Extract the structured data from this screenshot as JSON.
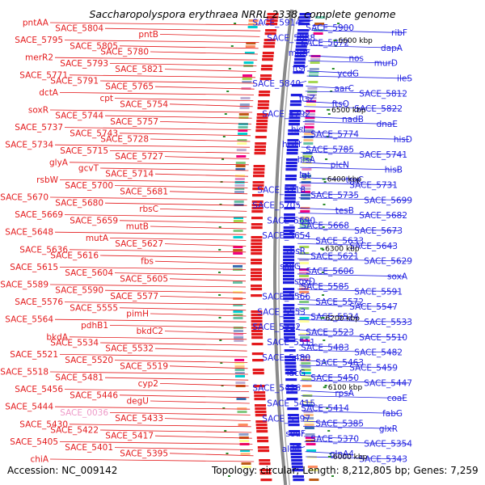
{
  "title": "Saccharopolyspora erythraea NRRL 2338, complete genome",
  "footer": {
    "accession": "Accession: NC_009142",
    "topology": "Topology: circular; Length: 8,212,805 bp; Genes: 7,259"
  },
  "colors": {
    "left_strand": "#e41a1c",
    "right_strand": "#1f1fe0",
    "backbone": "#8a8a8a",
    "highlight_label": "#ee9ac8"
  },
  "scale_labels": [
    "6600 kbp",
    "6500 kbp",
    "6400 kbp",
    "6300 kbp",
    "6200 kbp",
    "6100 kbp",
    "6000 kbp"
  ],
  "left_genes": [
    {
      "label": "pntAA"
    },
    {
      "label": "SACE_5804"
    },
    {
      "label": "pntB"
    },
    {
      "label": "SACE_5795"
    },
    {
      "label": "SACE_5805"
    },
    {
      "label": "SACE_5780"
    },
    {
      "label": "merR2"
    },
    {
      "label": "SACE_5793"
    },
    {
      "label": "SACE_5821"
    },
    {
      "label": "SACE_5771"
    },
    {
      "label": "SACE_5791"
    },
    {
      "label": "SACE_5765"
    },
    {
      "label": "dctA"
    },
    {
      "label": "cpt"
    },
    {
      "label": "SACE_5754"
    },
    {
      "label": "soxR"
    },
    {
      "label": "SACE_5744"
    },
    {
      "label": "SACE_5757"
    },
    {
      "label": "SACE_5737"
    },
    {
      "label": "SACE_5743"
    },
    {
      "label": "SACE_5728"
    },
    {
      "label": "SACE_5734"
    },
    {
      "label": "SACE_5715"
    },
    {
      "label": "SACE_5727"
    },
    {
      "label": "glyA"
    },
    {
      "label": "gcvT"
    },
    {
      "label": "SACE_5714"
    },
    {
      "label": "rsbW"
    },
    {
      "label": "SACE_5700"
    },
    {
      "label": "SACE_5681"
    },
    {
      "label": "SACE_5670"
    },
    {
      "label": "SACE_5680"
    },
    {
      "label": "rbsC"
    },
    {
      "label": "SACE_5669"
    },
    {
      "label": "SACE_5659"
    },
    {
      "label": "mutB"
    },
    {
      "label": "SACE_5648"
    },
    {
      "label": "mutA"
    },
    {
      "label": "SACE_5627"
    },
    {
      "label": "SACE_5636"
    },
    {
      "label": "SACE_5616"
    },
    {
      "label": "fbs"
    },
    {
      "label": "SACE_5615"
    },
    {
      "label": "SACE_5604"
    },
    {
      "label": "SACE_5605"
    },
    {
      "label": "SACE_5589"
    },
    {
      "label": "SACE_5590"
    },
    {
      "label": "SACE_5577"
    },
    {
      "label": "SACE_5576"
    },
    {
      "label": "SACE_5555"
    },
    {
      "label": "pimH"
    },
    {
      "label": "SACE_5564"
    },
    {
      "label": "pdhB1"
    },
    {
      "label": "bkdC2"
    },
    {
      "label": "bkdA"
    },
    {
      "label": "SACE_5534"
    },
    {
      "label": "SACE_5532"
    },
    {
      "label": "SACE_5521"
    },
    {
      "label": "SACE_5520"
    },
    {
      "label": "SACE_5519"
    },
    {
      "label": "SACE_5518"
    },
    {
      "label": "SACE_5481"
    },
    {
      "label": "cyp2"
    },
    {
      "label": "SACE_5456"
    },
    {
      "label": "SACE_5446"
    },
    {
      "label": "degU"
    },
    {
      "label": "SACE_5444"
    },
    {
      "label": "SACE_0036"
    },
    {
      "label": "SACE_5433"
    },
    {
      "label": "SACE_5430"
    },
    {
      "label": "SACE_5422"
    },
    {
      "label": "SACE_5417"
    },
    {
      "label": "SACE_5405"
    },
    {
      "label": "SACE_5401"
    },
    {
      "label": "SACE_5395"
    },
    {
      "label": "chiA"
    }
  ],
  "right_genes": [
    {
      "label": "SACE_5914"
    },
    {
      "label": "SACE_5900"
    },
    {
      "label": "ribF"
    },
    {
      "label": "SACE_5888"
    },
    {
      "label": "SACE_5872"
    },
    {
      "label": "dapA"
    },
    {
      "label": "murF"
    },
    {
      "label": "nos"
    },
    {
      "label": "murD"
    },
    {
      "label": "ftsI"
    },
    {
      "label": "ycdG"
    },
    {
      "label": "ileS"
    },
    {
      "label": "SACE_5840"
    },
    {
      "label": "aarC"
    },
    {
      "label": "SACE_5812"
    },
    {
      "label": "ftsZ"
    },
    {
      "label": "ftsQ"
    },
    {
      "label": "SACE_5822"
    },
    {
      "label": "SACE_5792"
    },
    {
      "label": "nadB"
    },
    {
      "label": "dnaE"
    },
    {
      "label": "hisI"
    },
    {
      "label": "SACE_5774"
    },
    {
      "label": "hisD"
    },
    {
      "label": "hisH"
    },
    {
      "label": "SACE_5785"
    },
    {
      "label": "SACE_5741"
    },
    {
      "label": "hisA"
    },
    {
      "label": "plcN"
    },
    {
      "label": "hisB"
    },
    {
      "label": "lgt"
    },
    {
      "label": "trpC"
    },
    {
      "label": "SACE_5731"
    },
    {
      "label": "SACE_5718"
    },
    {
      "label": "SACE_5735"
    },
    {
      "label": "SACE_5699"
    },
    {
      "label": "SACE_5705"
    },
    {
      "label": "tesB"
    },
    {
      "label": "SACE_5682"
    },
    {
      "label": "SACE_5690"
    },
    {
      "label": "SACE_5668"
    },
    {
      "label": "SACE_5673"
    },
    {
      "label": "SACE_5654"
    },
    {
      "label": "SACE_5633"
    },
    {
      "label": "SACE_5643"
    },
    {
      "label": "rbsR"
    },
    {
      "label": "SACE_5621"
    },
    {
      "label": "SACE_5629"
    },
    {
      "label": "soxG"
    },
    {
      "label": "SACE_5606"
    },
    {
      "label": "soxA"
    },
    {
      "label": "soxD"
    },
    {
      "label": "SACE_5585"
    },
    {
      "label": "SACE_5591"
    },
    {
      "label": "SACE_5566"
    },
    {
      "label": "SACE_5572"
    },
    {
      "label": "SACE_5547"
    },
    {
      "label": "SACE_5553"
    },
    {
      "label": "SACE_5524"
    },
    {
      "label": "SACE_5533"
    },
    {
      "label": "SACE_5522"
    },
    {
      "label": "SACE_5523"
    },
    {
      "label": "SACE_5510"
    },
    {
      "label": "SACE_5511"
    },
    {
      "label": "SACE_5483"
    },
    {
      "label": "SACE_5482"
    },
    {
      "label": "SACE_5480"
    },
    {
      "label": "SACE_5463"
    },
    {
      "label": "SACE_5459"
    },
    {
      "label": "lacG"
    },
    {
      "label": "SACE_5450"
    },
    {
      "label": "SACE_5447"
    },
    {
      "label": "SACE_5436"
    },
    {
      "label": "rpsA"
    },
    {
      "label": "coaE"
    },
    {
      "label": "SACE_5415"
    },
    {
      "label": "SACE_5414"
    },
    {
      "label": "fabG"
    },
    {
      "label": "SACE_5397"
    },
    {
      "label": "SACE_5385"
    },
    {
      "label": "glxR"
    },
    {
      "label": "sodF"
    },
    {
      "label": "SACE_5370"
    },
    {
      "label": "SACE_5354"
    },
    {
      "label": "aldC"
    },
    {
      "label": "glnA4"
    },
    {
      "label": "SACE_5343"
    }
  ]
}
